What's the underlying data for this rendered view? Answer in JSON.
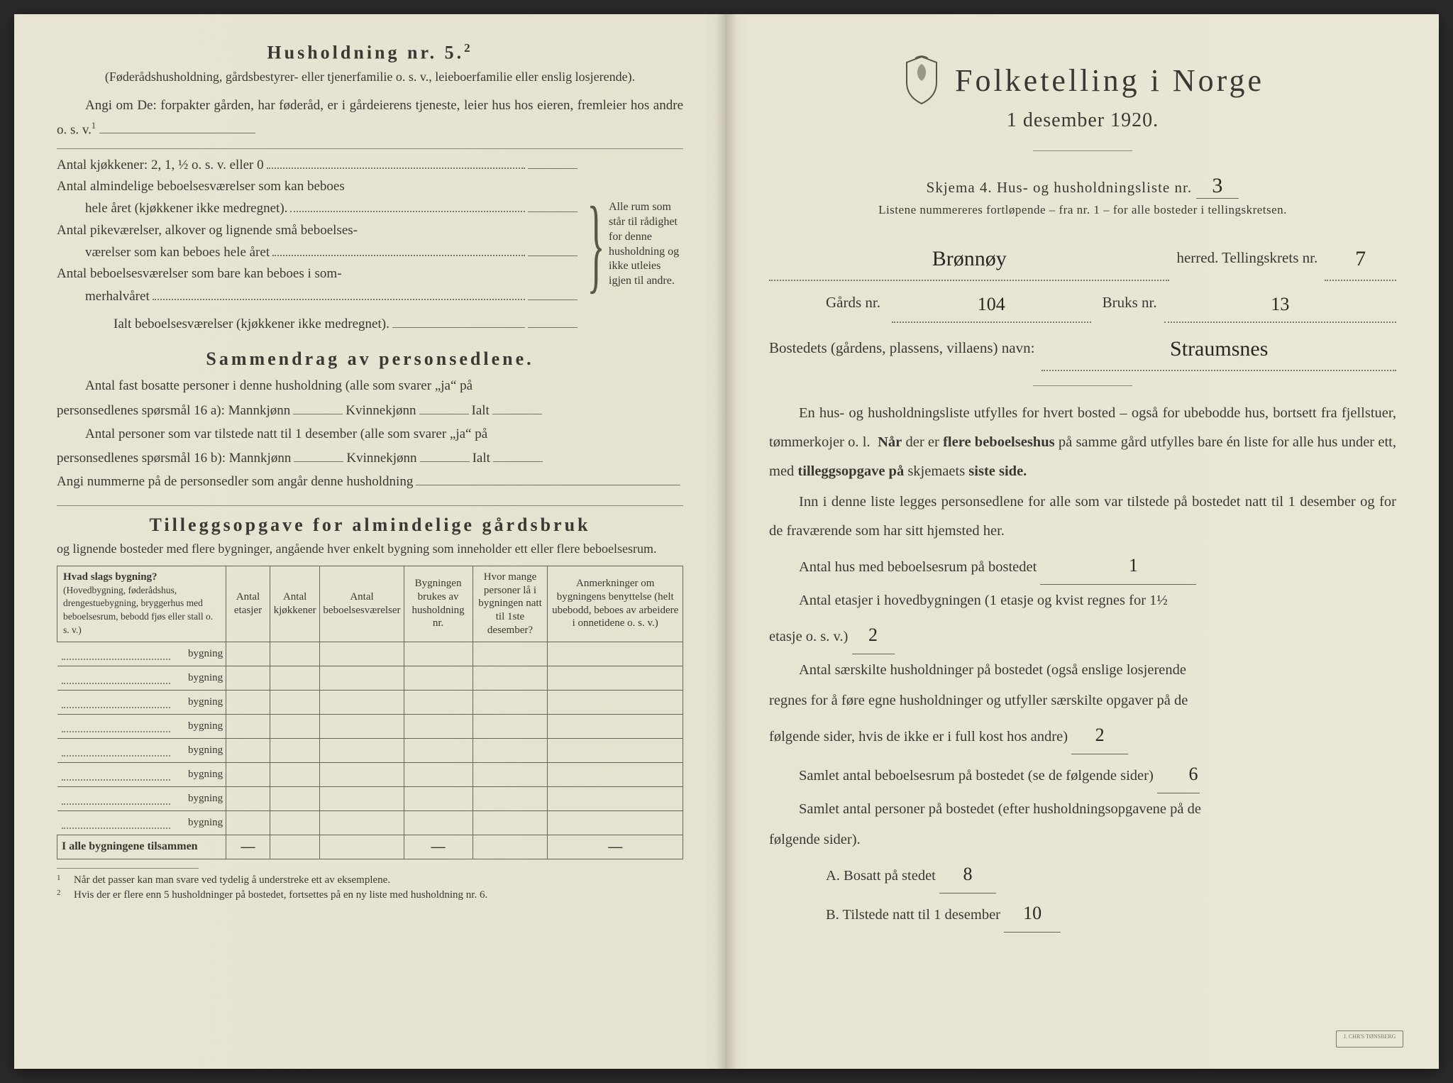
{
  "colors": {
    "paper": "#e8e4d4",
    "ink": "#3a3832",
    "rule": "#7a7568",
    "handwriting": "#2a2620"
  },
  "left": {
    "h5_title": "Husholdning nr. 5.",
    "h5_sup": "2",
    "h5_note": "(Føderådshusholdning, gårdsbestyrer- eller tjenerfamilie o. s. v., leieboerfamilie eller enslig losjerende).",
    "angi_intro": "Angi om De:  forpakter gården, har føderåd, er i gårdeierens tjeneste, leier hus hos eieren, fremleier hos andre o. s. v.",
    "angi_sup": "1",
    "kjokken_line": "Antal kjøkkener: 2, 1, ½ o. s. v. eller 0",
    "alm_lines_1": "Antal almindelige beboelsesværelser som kan beboes",
    "alm_lines_1b": "hele året (kjøkkener ikke medregnet).",
    "alm_lines_2": "Antal pikeværelser, alkover og lignende små beboelses-",
    "alm_lines_2b": "værelser som kan beboes hele året",
    "alm_lines_3": "Antal beboelsesværelser som bare kan beboes i som-",
    "alm_lines_3b": "merhalvåret",
    "ialt_line": "Ialt beboelsesværelser (kjøkkener ikke medregnet).",
    "brace_text": "Alle rum som står til rådighet for denne husholdning og ikke utleies igjen til andre.",
    "samm_title": "Sammendrag av personsedlene.",
    "samm_p1a": "Antal fast bosatte personer i denne husholdning (alle som svarer „ja“ på",
    "samm_p1b": "personsedlenes spørsmål 16 a): Mannkjønn",
    "samm_kv": "Kvinnekjønn",
    "samm_ialt": "Ialt",
    "samm_p2a": "Antal personer som var tilstede natt til 1 desember (alle som svarer „ja“ på",
    "samm_p2b": "personsedlenes spørsmål 16 b): Mannkjønn",
    "samm_p3": "Angi nummerne på de personsedler som angår denne husholdning",
    "tillegg_title": "Tilleggsopgave for almindelige gårdsbruk",
    "tillegg_sub": "og lignende bosteder med flere bygninger, angående hver enkelt bygning som inneholder ett eller flere beboelsesrum.",
    "table": {
      "headers": [
        "Hvad slags bygning?\n(Hovedbygning, føderådshus, drengestuebygning, bryggerhus med beboelsesrum, bebodd fjøs eller stall o. s. v.)",
        "Antal etasjer",
        "Antal kjøkkener",
        "Antal beboelsesværelser",
        "Bygningen brukes av husholdning nr.",
        "Hvor mange personer lå i bygningen natt til 1ste desember?",
        "Anmerkninger om bygningens benyttelse (helt ubebodd, beboes av arbeidere i onnetidene o. s. v.)"
      ],
      "row_label": "bygning",
      "num_rows": 8,
      "footer_label": "I alle bygningene tilsammen",
      "dash": "—"
    },
    "footnote1": "Når det passer kan man svare ved tydelig å understreke ett av eksemplene.",
    "footnote2": "Hvis der er flere enn 5 husholdninger på bostedet, fortsettes på en ny liste med husholdning nr. 6."
  },
  "right": {
    "title": "Folketelling i Norge",
    "date": "1 desember 1920.",
    "skjema": "Skjema 4.  Hus- og husholdningsliste nr.",
    "skjema_val": "3",
    "listene": "Listene nummereres fortløpende – fra nr. 1 – for alle bosteder i tellingskretsen.",
    "herred_val": "Brønnøy",
    "herred_label": "herred.   Tellingskrets nr.",
    "krets_val": "7",
    "gards_label": "Gårds nr.",
    "gards_val": "104",
    "bruks_label": "Bruks nr.",
    "bruks_val": "13",
    "bosted_label": "Bostedets (gårdens, plassens, villaens) navn:",
    "bosted_val": "Straumsnes",
    "body_p1": "En hus- og husholdningsliste utfylles for hvert bosted – også for ubebodde hus, bortsett fra fjellstuer, tømmerkojer o. l.  Når der er flere beboelseshus på samme gård utfylles bare én liste for alle hus under ett, med tilleggsopgave på skjemaets siste side.",
    "body_p2": "Inn i denne liste legges personsedlene for alle som var tilstede på bostedet natt til 1 desember og for de fraværende som har sitt hjemsted her.",
    "q1": "Antal hus med beboelsesrum på bostedet",
    "q1_val": "1",
    "q2a": "Antal etasjer i hovedbygningen (1 etasje og kvist regnes for 1½",
    "q2b": "etasje o. s. v.)",
    "q2_val": "2",
    "q3a": "Antal særskilte husholdninger på bostedet (også enslige losjerende",
    "q3b": "regnes for å føre egne husholdninger og utfyller særskilte opgaver på de",
    "q3c": "følgende sider, hvis de ikke er i full kost hos andre)",
    "q3_val": "2",
    "q4": "Samlet antal beboelsesrum på bostedet (se de følgende sider)",
    "q4_val": "6",
    "q5a": "Samlet antal personer på bostedet (efter husholdningsopgavene på de",
    "q5b": "følgende sider).",
    "qA": "A.  Bosatt på stedet",
    "qA_val": "8",
    "qB": "B.  Tilstede natt til 1 desember",
    "qB_val": "10",
    "stamp": "J. CHR'S TØNSBERG"
  }
}
